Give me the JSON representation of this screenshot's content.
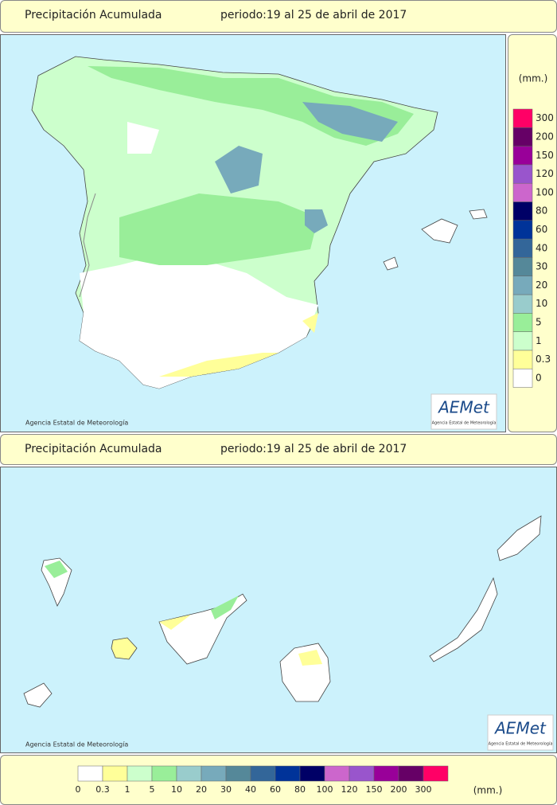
{
  "top_header": {
    "title": "Precipitación Acumulada",
    "period": "periodo:19 al 25 de abril de 2017"
  },
  "bottom_header": {
    "title": "Precipitación Acumulada",
    "period": "periodo:19 al 25 de abril de 2017"
  },
  "peninsula_map": {
    "credit": "Agencia Estatal de Meteorología",
    "logo": "AEMet",
    "logo_sub": "Agencia Estatal de Meteorología"
  },
  "canarias_map": {
    "credit": "Agencia Estatal de Meteorología",
    "logo": "AEMet",
    "logo_sub": "Agencia Estatal de Meteorología"
  },
  "legend": {
    "unit": "(mm.)",
    "items": [
      {
        "label": "0",
        "color": "#ffffff"
      },
      {
        "label": "0.3",
        "color": "#ffff99"
      },
      {
        "label": "1",
        "color": "#ccffcc"
      },
      {
        "label": "5",
        "color": "#99ee99"
      },
      {
        "label": "10",
        "color": "#99cccc"
      },
      {
        "label": "20",
        "color": "#77aabb"
      },
      {
        "label": "30",
        "color": "#558899"
      },
      {
        "label": "40",
        "color": "#336699"
      },
      {
        "label": "60",
        "color": "#003399"
      },
      {
        "label": "80",
        "color": "#000066"
      },
      {
        "label": "100",
        "color": "#cc66cc"
      },
      {
        "label": "120",
        "color": "#9955cc"
      },
      {
        "label": "150",
        "color": "#990099"
      },
      {
        "label": "200",
        "color": "#660066"
      },
      {
        "label": "300",
        "color": "#ff0066"
      }
    ]
  }
}
